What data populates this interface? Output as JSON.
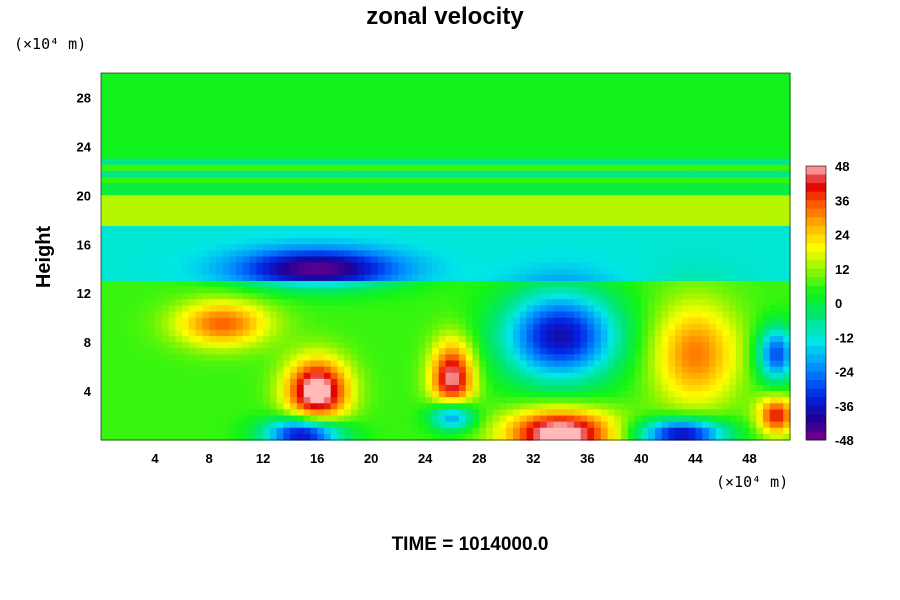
{
  "chart_data": {
    "type": "heatmap",
    "title": "zonal velocity",
    "ylabel": "Height",
    "xlabel": "",
    "x_unit_label": "(×10⁴ m)",
    "y_unit_label": "(×10⁴ m)",
    "x_ticks": [
      4,
      8,
      12,
      16,
      20,
      24,
      28,
      32,
      36,
      40,
      44,
      48
    ],
    "y_ticks": [
      4,
      8,
      12,
      16,
      20,
      24,
      28
    ],
    "xlim": [
      0,
      51
    ],
    "ylim": [
      0,
      30
    ],
    "colorbar": {
      "ticks": [
        48,
        36,
        24,
        12,
        0,
        -12,
        -24,
        -36,
        -48
      ],
      "range": [
        -48,
        48
      ]
    },
    "features": [
      {
        "x": 16,
        "y": 4,
        "value": 48
      },
      {
        "x": 26,
        "y": 5,
        "value": 42
      },
      {
        "x": 34,
        "y": 0.5,
        "value": 48
      },
      {
        "x": 44,
        "y": 7,
        "value": 26
      },
      {
        "x": 50,
        "y": 2,
        "value": 34
      },
      {
        "x": 9,
        "y": 9.5,
        "value": 28
      },
      {
        "x": 34,
        "y": 8.5,
        "value": -44
      },
      {
        "x": 16,
        "y": 14,
        "value": -34
      },
      {
        "x": 15,
        "y": 0.5,
        "value": -48
      },
      {
        "x": 43,
        "y": 0.5,
        "value": -46
      },
      {
        "x": 26,
        "y": 2,
        "value": -40
      },
      {
        "x": 50,
        "y": 7,
        "value": -36
      }
    ]
  },
  "footer": {
    "time_label": "TIME = 1014000.0"
  }
}
